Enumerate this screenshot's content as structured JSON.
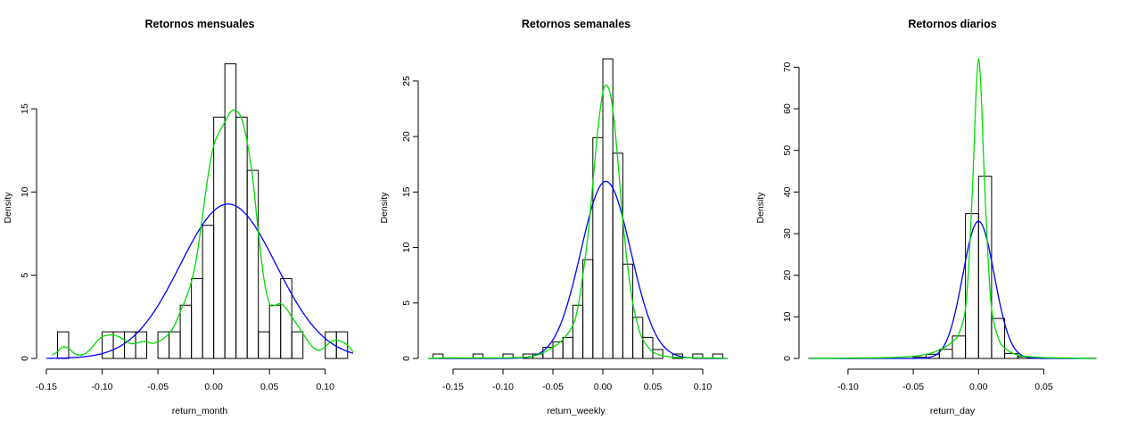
{
  "chart_data": [
    {
      "type": "histogram",
      "title": "Retornos mensuales",
      "xlabel": "return_month",
      "ylabel": "Density",
      "xlim": [
        -0.15,
        0.125
      ],
      "ylim": [
        0,
        18
      ],
      "x_ticks": [
        -0.15,
        -0.1,
        -0.05,
        0.0,
        0.05,
        0.1
      ],
      "x_tick_labels": [
        "-0.15",
        "-0.10",
        "-0.05",
        "0.00",
        "0.05",
        "0.10"
      ],
      "y_ticks": [
        0,
        5,
        10,
        15
      ],
      "y_tick_labels": [
        "0",
        "5",
        "10",
        "15"
      ],
      "bin_width": 0.01,
      "bins": [
        {
          "start": -0.14,
          "end": -0.13,
          "density": 1.6
        },
        {
          "start": -0.1,
          "end": -0.09,
          "density": 1.6
        },
        {
          "start": -0.09,
          "end": -0.08,
          "density": 1.6
        },
        {
          "start": -0.08,
          "end": -0.07,
          "density": 1.6
        },
        {
          "start": -0.07,
          "end": -0.06,
          "density": 1.6
        },
        {
          "start": -0.05,
          "end": -0.04,
          "density": 1.6
        },
        {
          "start": -0.04,
          "end": -0.03,
          "density": 1.6
        },
        {
          "start": -0.03,
          "end": -0.02,
          "density": 3.2
        },
        {
          "start": -0.02,
          "end": -0.01,
          "density": 4.8
        },
        {
          "start": -0.01,
          "end": 0.0,
          "density": 8.0
        },
        {
          "start": 0.0,
          "end": 0.01,
          "density": 14.5
        },
        {
          "start": 0.01,
          "end": 0.02,
          "density": 17.7
        },
        {
          "start": 0.02,
          "end": 0.03,
          "density": 14.5
        },
        {
          "start": 0.03,
          "end": 0.04,
          "density": 11.3
        },
        {
          "start": 0.04,
          "end": 0.05,
          "density": 1.6
        },
        {
          "start": 0.05,
          "end": 0.06,
          "density": 3.2
        },
        {
          "start": 0.06,
          "end": 0.07,
          "density": 4.8
        },
        {
          "start": 0.07,
          "end": 0.08,
          "density": 1.6
        },
        {
          "start": 0.1,
          "end": 0.11,
          "density": 1.6
        },
        {
          "start": 0.11,
          "end": 0.12,
          "density": 1.6
        }
      ],
      "normal_curve": {
        "color": "#0000ff",
        "mean": 0.013,
        "sd": 0.043
      },
      "kde_curve": {
        "color": "#00dd00",
        "x": [
          -0.145,
          -0.14,
          -0.135,
          -0.13,
          -0.125,
          -0.12,
          -0.115,
          -0.11,
          -0.105,
          -0.1,
          -0.095,
          -0.09,
          -0.085,
          -0.08,
          -0.075,
          -0.07,
          -0.065,
          -0.06,
          -0.055,
          -0.05,
          -0.045,
          -0.04,
          -0.035,
          -0.03,
          -0.025,
          -0.02,
          -0.015,
          -0.01,
          -0.005,
          0.0,
          0.005,
          0.01,
          0.015,
          0.02,
          0.025,
          0.03,
          0.035,
          0.04,
          0.045,
          0.05,
          0.055,
          0.06,
          0.065,
          0.07,
          0.075,
          0.08,
          0.085,
          0.09,
          0.095,
          0.1,
          0.105,
          0.11,
          0.115,
          0.12,
          0.125
        ],
        "y": [
          0.2,
          0.4,
          0.7,
          0.6,
          0.3,
          0.2,
          0.3,
          0.6,
          1.0,
          1.3,
          1.4,
          1.4,
          1.3,
          1.1,
          0.9,
          0.9,
          1.0,
          1.0,
          0.9,
          1.0,
          1.2,
          1.5,
          2.0,
          2.8,
          3.6,
          4.6,
          6.2,
          8.6,
          11.0,
          12.8,
          13.6,
          14.2,
          14.8,
          14.9,
          14.4,
          13.0,
          10.8,
          7.6,
          4.8,
          3.3,
          3.2,
          3.3,
          3.0,
          2.5,
          2.0,
          1.5,
          1.0,
          0.6,
          0.5,
          0.7,
          1.0,
          1.1,
          1.0,
          0.8,
          0.4
        ]
      }
    },
    {
      "type": "histogram",
      "title": "Retornos semanales",
      "xlabel": "return_weekly",
      "ylabel": "Density",
      "xlim": [
        -0.175,
        0.125
      ],
      "ylim": [
        0,
        27
      ],
      "x_ticks": [
        -0.15,
        -0.1,
        -0.05,
        0.0,
        0.05,
        0.1
      ],
      "x_tick_labels": [
        "-0.15",
        "-0.10",
        "-0.05",
        "0.00",
        "0.05",
        "0.10"
      ],
      "y_ticks": [
        0,
        5,
        10,
        15,
        20,
        25
      ],
      "y_tick_labels": [
        "0",
        "5",
        "10",
        "15",
        "20",
        "25"
      ],
      "bin_width": 0.01,
      "bins": [
        {
          "start": -0.17,
          "end": -0.16,
          "density": 0.4
        },
        {
          "start": -0.13,
          "end": -0.12,
          "density": 0.4
        },
        {
          "start": -0.1,
          "end": -0.09,
          "density": 0.4
        },
        {
          "start": -0.08,
          "end": -0.07,
          "density": 0.4
        },
        {
          "start": -0.07,
          "end": -0.06,
          "density": 0.4
        },
        {
          "start": -0.06,
          "end": -0.05,
          "density": 1.0
        },
        {
          "start": -0.05,
          "end": -0.04,
          "density": 1.5
        },
        {
          "start": -0.04,
          "end": -0.03,
          "density": 1.9
        },
        {
          "start": -0.03,
          "end": -0.02,
          "density": 4.8
        },
        {
          "start": -0.02,
          "end": -0.01,
          "density": 8.9
        },
        {
          "start": -0.01,
          "end": 0.0,
          "density": 19.9
        },
        {
          "start": 0.0,
          "end": 0.01,
          "density": 27.0
        },
        {
          "start": 0.01,
          "end": 0.02,
          "density": 18.5
        },
        {
          "start": 0.02,
          "end": 0.03,
          "density": 8.5
        },
        {
          "start": 0.03,
          "end": 0.04,
          "density": 3.7
        },
        {
          "start": 0.04,
          "end": 0.05,
          "density": 1.9
        },
        {
          "start": 0.05,
          "end": 0.06,
          "density": 0.8
        },
        {
          "start": 0.07,
          "end": 0.08,
          "density": 0.4
        },
        {
          "start": 0.09,
          "end": 0.1,
          "density": 0.4
        },
        {
          "start": 0.11,
          "end": 0.12,
          "density": 0.4
        }
      ],
      "normal_curve": {
        "color": "#0000ff",
        "mean": 0.003,
        "sd": 0.025
      },
      "kde_curve": {
        "color": "#00dd00",
        "x": [
          -0.175,
          -0.16,
          -0.14,
          -0.12,
          -0.1,
          -0.08,
          -0.07,
          -0.06,
          -0.05,
          -0.04,
          -0.03,
          -0.025,
          -0.02,
          -0.015,
          -0.01,
          -0.005,
          0.0,
          0.004,
          0.008,
          0.012,
          0.016,
          0.02,
          0.025,
          0.03,
          0.035,
          0.04,
          0.05,
          0.06,
          0.07,
          0.08,
          0.09,
          0.1,
          0.11,
          0.12,
          0.125
        ],
        "y": [
          0.0,
          0.05,
          0.05,
          0.05,
          0.05,
          0.1,
          0.2,
          0.5,
          1.0,
          1.7,
          3.0,
          4.6,
          7.5,
          11.0,
          15.8,
          20.6,
          24.0,
          24.6,
          23.6,
          20.8,
          16.8,
          12.5,
          8.2,
          5.0,
          3.0,
          1.7,
          0.6,
          0.25,
          0.12,
          0.08,
          0.06,
          0.05,
          0.04,
          0.03,
          0.0
        ]
      }
    },
    {
      "type": "histogram",
      "title": "Retornos diarios",
      "xlabel": "return_day",
      "ylabel": "Density",
      "xlim": [
        -0.13,
        0.09
      ],
      "ylim": [
        0,
        72
      ],
      "x_ticks": [
        -0.1,
        -0.05,
        0.0,
        0.05
      ],
      "x_tick_labels": [
        "-0.10",
        "-0.05",
        "0.00",
        "0.05"
      ],
      "y_ticks": [
        0,
        10,
        20,
        30,
        40,
        50,
        60,
        70
      ],
      "y_tick_labels": [
        "0",
        "10",
        "20",
        "30",
        "40",
        "50",
        "60",
        "70"
      ],
      "bin_width": 0.01,
      "bins": [
        {
          "start": -0.13,
          "end": -0.12,
          "density": 0.05
        },
        {
          "start": -0.05,
          "end": -0.04,
          "density": 0.3
        },
        {
          "start": -0.04,
          "end": -0.03,
          "density": 1.0
        },
        {
          "start": -0.03,
          "end": -0.02,
          "density": 2.2
        },
        {
          "start": -0.02,
          "end": -0.01,
          "density": 5.4
        },
        {
          "start": -0.01,
          "end": 0.0,
          "density": 34.8
        },
        {
          "start": 0.0,
          "end": 0.01,
          "density": 43.8
        },
        {
          "start": 0.01,
          "end": 0.02,
          "density": 9.6
        },
        {
          "start": 0.02,
          "end": 0.03,
          "density": 1.2
        },
        {
          "start": 0.03,
          "end": 0.04,
          "density": 0.4
        },
        {
          "start": 0.04,
          "end": 0.05,
          "density": 0.2
        },
        {
          "start": 0.05,
          "end": 0.06,
          "density": 0.1
        },
        {
          "start": 0.06,
          "end": 0.07,
          "density": 0.05
        },
        {
          "start": 0.08,
          "end": 0.09,
          "density": 0.05
        }
      ],
      "normal_curve": {
        "color": "#0000ff",
        "mean": 0.0,
        "sd": 0.0121
      },
      "kde_curve": {
        "color": "#00dd00",
        "x": [
          -0.13,
          -0.1,
          -0.07,
          -0.05,
          -0.04,
          -0.03,
          -0.02,
          -0.015,
          -0.01,
          -0.007,
          -0.004,
          -0.002,
          0.0,
          0.002,
          0.004,
          0.007,
          0.01,
          0.015,
          0.02,
          0.03,
          0.04,
          0.05,
          0.07,
          0.09
        ],
        "y": [
          0.0,
          0.1,
          0.2,
          0.5,
          1.0,
          2.0,
          4.0,
          6.0,
          12.0,
          25.0,
          46.0,
          63.0,
          72.0,
          64.0,
          47.0,
          26.0,
          12.0,
          5.0,
          2.5,
          0.8,
          0.4,
          0.2,
          0.1,
          0.0
        ]
      }
    }
  ]
}
